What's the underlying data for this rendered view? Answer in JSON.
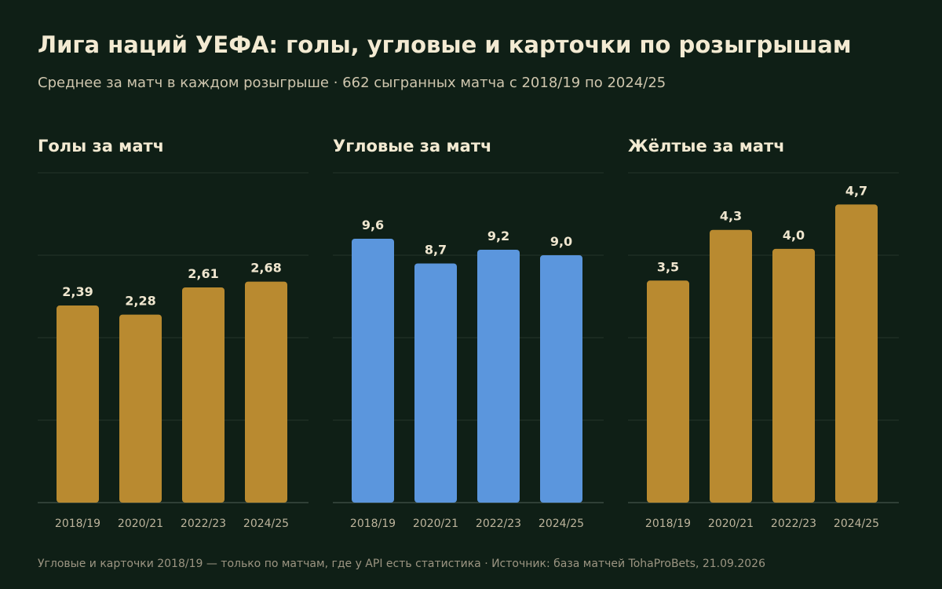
{
  "title": "Лига наций УЕФА: голы, угловые и карточки по розыгрышам",
  "subtitle": "Среднее за матч в каждом розыгрыше · 662 сыгранных матча с 2018/19 по 2024/25",
  "footnote": "Угловые и карточки 2018/19 — только по матчам, где у API есть статистика · Источник: база матчей TohaProBets, 21.09.2026",
  "colors": {
    "background": "#0f1f16",
    "gold": "#b98a30",
    "blue": "#5b96dd",
    "grid": "#24352b",
    "text": "#efe6cf",
    "tick": "#bdb49c"
  },
  "chart_data": [
    {
      "type": "bar",
      "title": "Голы за матч",
      "categories": [
        "2018/19",
        "2020/21",
        "2022/23",
        "2024/25"
      ],
      "values": [
        2.39,
        2.28,
        2.61,
        2.68
      ],
      "value_labels": [
        "2,39",
        "2,28",
        "2,61",
        "2,68"
      ],
      "ylim": [
        0,
        4
      ],
      "grid": true,
      "color": "#b98a30"
    },
    {
      "type": "bar",
      "title": "Угловые за матч",
      "categories": [
        "2018/19",
        "2020/21",
        "2022/23",
        "2024/25"
      ],
      "values": [
        9.6,
        8.7,
        9.2,
        9.0
      ],
      "value_labels": [
        "9,6",
        "8,7",
        "9,2",
        "9,0"
      ],
      "ylim": [
        0,
        12
      ],
      "grid": true,
      "color": "#5b96dd"
    },
    {
      "type": "bar",
      "title": "Жёлтые за матч",
      "categories": [
        "2018/19",
        "2020/21",
        "2022/23",
        "2024/25"
      ],
      "values": [
        3.5,
        4.3,
        4.0,
        4.7
      ],
      "value_labels": [
        "3,5",
        "4,3",
        "4,0",
        "4,7"
      ],
      "ylim": [
        0,
        5.2
      ],
      "grid": true,
      "color": "#b98a30"
    }
  ]
}
